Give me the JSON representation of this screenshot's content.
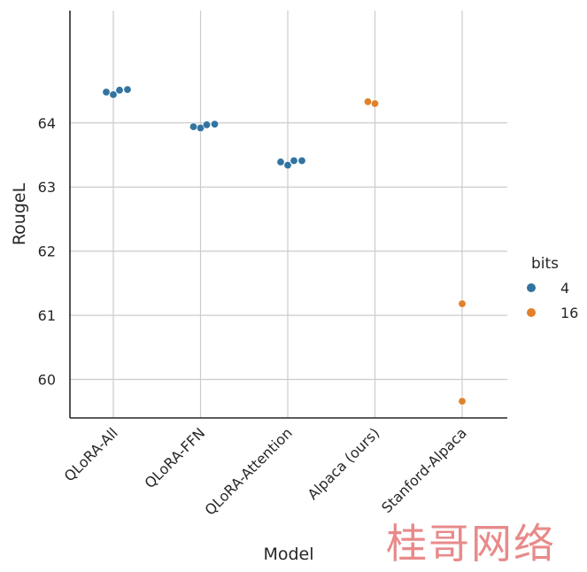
{
  "chart_data": {
    "type": "scatter",
    "title": "",
    "xlabel": "Model",
    "ylabel": "RougeL",
    "categories": [
      "QLoRA-All",
      "QLoRA-FFN",
      "QLoRA-Attention",
      "Alpaca (ours)",
      "Stanford-Alpaca"
    ],
    "ylim": [
      59.4,
      65.75
    ],
    "yticks": [
      60,
      61,
      62,
      63,
      64
    ],
    "grid": true,
    "legend": {
      "title": "bits",
      "placement": "right"
    },
    "series": [
      {
        "name": "4",
        "color": "#3274a1",
        "points": [
          {
            "category": "QLoRA-All",
            "values": [
              64.48,
              64.44,
              64.51,
              64.52
            ]
          },
          {
            "category": "QLoRA-FFN",
            "values": [
              63.94,
              63.92,
              63.97,
              63.98
            ]
          },
          {
            "category": "QLoRA-Attention",
            "values": [
              63.39,
              63.34,
              63.41,
              63.41
            ]
          }
        ]
      },
      {
        "name": "16",
        "color": "#e1812c",
        "points": [
          {
            "category": "Alpaca (ours)",
            "values": [
              64.33,
              64.3
            ]
          },
          {
            "category": "Stanford-Alpaca",
            "values": [
              61.18,
              59.66
            ]
          }
        ]
      }
    ]
  },
  "watermark": "桂哥网络"
}
